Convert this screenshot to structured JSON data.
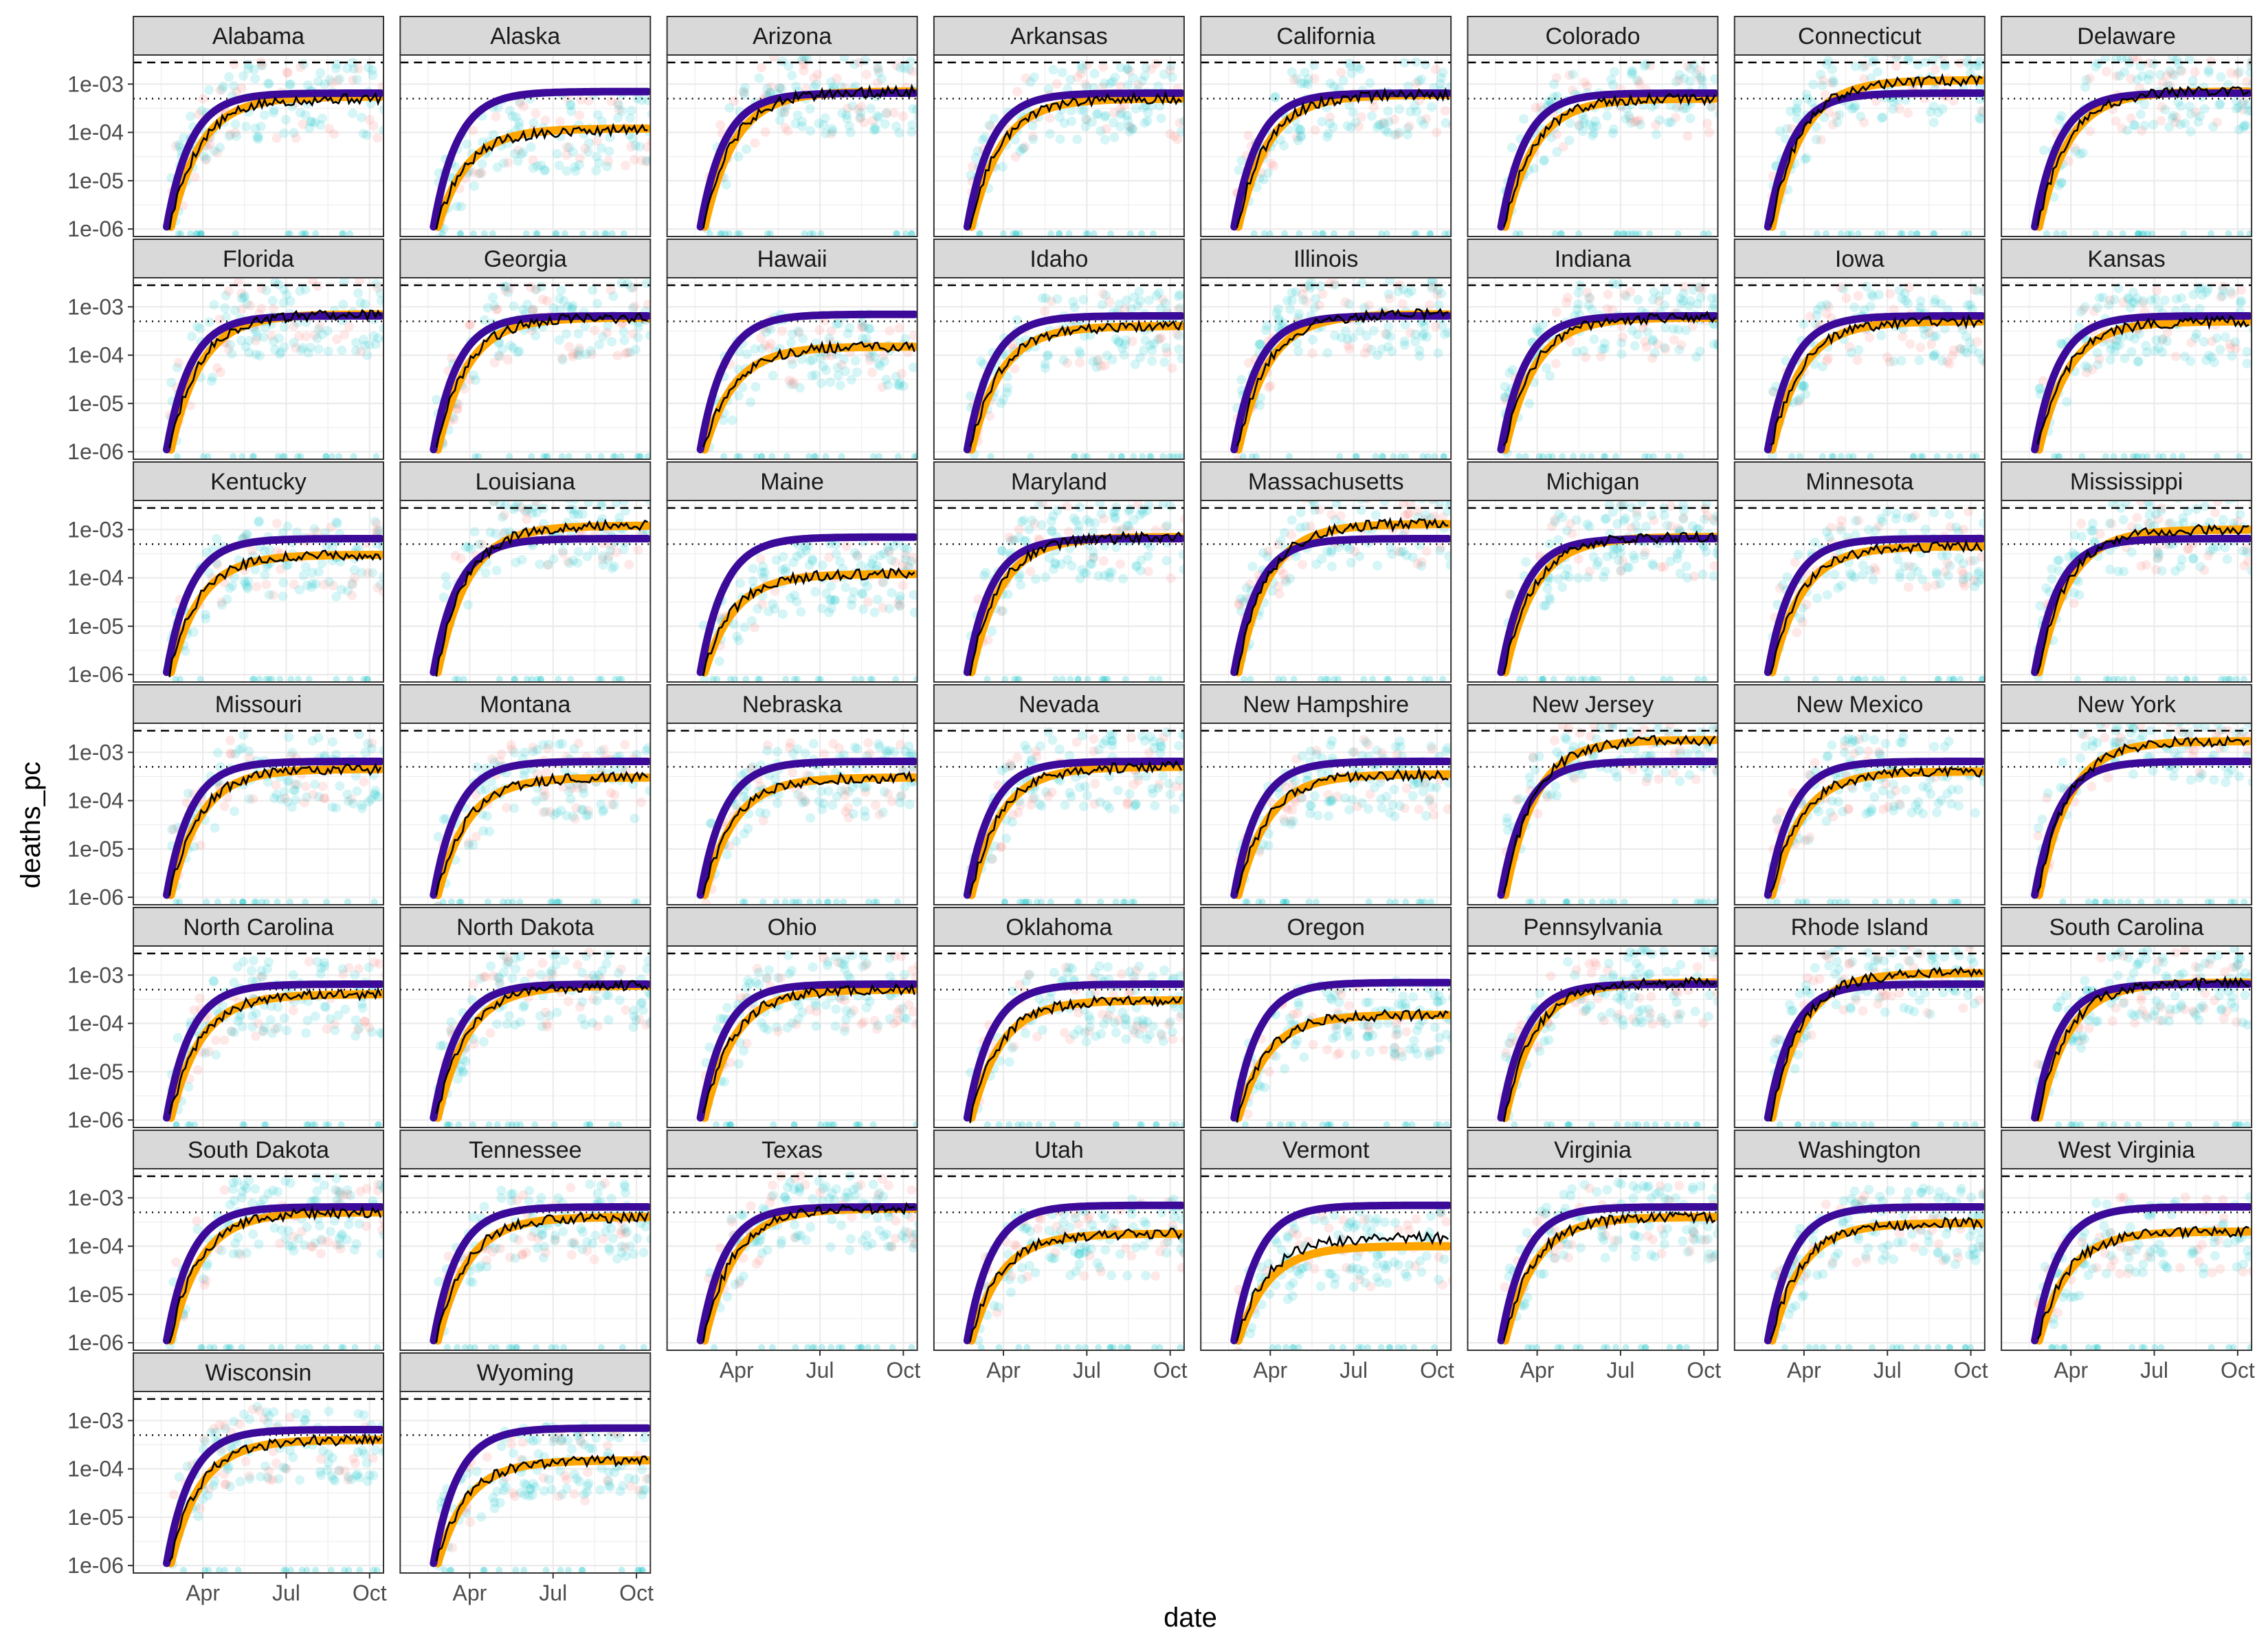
{
  "chart_data": {
    "type": "line",
    "xlabel": "date",
    "ylabel": "deaths_pc",
    "x_ticks": [
      "Apr",
      "Jul",
      "Oct"
    ],
    "y_ticks": [
      "1e-03",
      "1e-04",
      "1e-05",
      "1e-06"
    ],
    "y_scale": "log10",
    "ylim": [
      7e-07,
      0.004
    ],
    "grid": true,
    "legend": "none",
    "reference_lines": [
      {
        "style": "dashed",
        "y": 0.0028
      },
      {
        "style": "dotted",
        "y": 0.0005
      }
    ],
    "series_styles": {
      "observed": {
        "color": "#000000"
      },
      "fit_orange": {
        "color": "#FFA500"
      },
      "fit_purple": {
        "color": "#3B0A99"
      },
      "points_a": {
        "color": "#00BFC4"
      },
      "points_b": {
        "color": "#F8766D"
      }
    },
    "panel_style": {
      "strip_fill": "#D9D9D9",
      "border": "#333333",
      "grid": "#EBEBEB"
    },
    "panels": [
      {
        "name": "Alabama",
        "orange_end": 0.00055,
        "purple_end": 0.00065,
        "black_end": 0.0005
      },
      {
        "name": "Alaska",
        "orange_end": 0.00012,
        "purple_end": 0.0007,
        "black_end": 0.00011
      },
      {
        "name": "Arizona",
        "orange_end": 0.0007,
        "purple_end": 0.00065,
        "black_end": 0.0007
      },
      {
        "name": "Arkansas",
        "orange_end": 0.0005,
        "purple_end": 0.00065,
        "black_end": 0.0005
      },
      {
        "name": "California",
        "orange_end": 0.0006,
        "purple_end": 0.00065,
        "black_end": 0.0006
      },
      {
        "name": "Colorado",
        "orange_end": 0.0005,
        "purple_end": 0.00065,
        "black_end": 0.0005
      },
      {
        "name": "Connecticut",
        "orange_end": 0.0012,
        "purple_end": 0.00065,
        "black_end": 0.0012
      },
      {
        "name": "Delaware",
        "orange_end": 0.0007,
        "purple_end": 0.00065,
        "black_end": 0.0007
      },
      {
        "name": "Florida",
        "orange_end": 0.0007,
        "purple_end": 0.00065,
        "black_end": 0.0007
      },
      {
        "name": "Georgia",
        "orange_end": 0.0006,
        "purple_end": 0.00065,
        "black_end": 0.0006
      },
      {
        "name": "Hawaii",
        "orange_end": 0.00015,
        "purple_end": 0.0007,
        "black_end": 0.00015
      },
      {
        "name": "Idaho",
        "orange_end": 0.0004,
        "purple_end": 0.00065,
        "black_end": 0.0004
      },
      {
        "name": "Illinois",
        "orange_end": 0.0007,
        "purple_end": 0.00065,
        "black_end": 0.0007
      },
      {
        "name": "Indiana",
        "orange_end": 0.0006,
        "purple_end": 0.00065,
        "black_end": 0.0006
      },
      {
        "name": "Iowa",
        "orange_end": 0.0005,
        "purple_end": 0.00065,
        "black_end": 0.0005
      },
      {
        "name": "Kansas",
        "orange_end": 0.0005,
        "purple_end": 0.00065,
        "black_end": 0.0005
      },
      {
        "name": "Kentucky",
        "orange_end": 0.0003,
        "purple_end": 0.00065,
        "black_end": 0.0003
      },
      {
        "name": "Louisiana",
        "orange_end": 0.0012,
        "purple_end": 0.00065,
        "black_end": 0.0012
      },
      {
        "name": "Maine",
        "orange_end": 0.00012,
        "purple_end": 0.0007,
        "black_end": 0.00012
      },
      {
        "name": "Maryland",
        "orange_end": 0.0007,
        "purple_end": 0.00065,
        "black_end": 0.0007
      },
      {
        "name": "Massachusetts",
        "orange_end": 0.0013,
        "purple_end": 0.00065,
        "black_end": 0.0013
      },
      {
        "name": "Michigan",
        "orange_end": 0.0007,
        "purple_end": 0.00065,
        "black_end": 0.0007
      },
      {
        "name": "Minnesota",
        "orange_end": 0.00045,
        "purple_end": 0.00065,
        "black_end": 0.00045
      },
      {
        "name": "Mississippi",
        "orange_end": 0.001,
        "purple_end": 0.00065,
        "black_end": 0.001
      },
      {
        "name": "Missouri",
        "orange_end": 0.00045,
        "purple_end": 0.00065,
        "black_end": 0.00045
      },
      {
        "name": "Montana",
        "orange_end": 0.0003,
        "purple_end": 0.00065,
        "black_end": 0.0003
      },
      {
        "name": "Nebraska",
        "orange_end": 0.0003,
        "purple_end": 0.00065,
        "black_end": 0.0003
      },
      {
        "name": "Nevada",
        "orange_end": 0.0005,
        "purple_end": 0.00065,
        "black_end": 0.0005
      },
      {
        "name": "New Hampshire",
        "orange_end": 0.00035,
        "purple_end": 0.00065,
        "black_end": 0.00035
      },
      {
        "name": "New Jersey",
        "orange_end": 0.0018,
        "purple_end": 0.00065,
        "black_end": 0.0018
      },
      {
        "name": "New Mexico",
        "orange_end": 0.0004,
        "purple_end": 0.00065,
        "black_end": 0.0004
      },
      {
        "name": "New York",
        "orange_end": 0.0017,
        "purple_end": 0.00065,
        "black_end": 0.0017
      },
      {
        "name": "North Carolina",
        "orange_end": 0.0004,
        "purple_end": 0.00065,
        "black_end": 0.0004
      },
      {
        "name": "North Dakota",
        "orange_end": 0.0006,
        "purple_end": 0.00065,
        "black_end": 0.0006
      },
      {
        "name": "Ohio",
        "orange_end": 0.0005,
        "purple_end": 0.00065,
        "black_end": 0.0005
      },
      {
        "name": "Oklahoma",
        "orange_end": 0.0003,
        "purple_end": 0.00065,
        "black_end": 0.0003
      },
      {
        "name": "Oregon",
        "orange_end": 0.00015,
        "purple_end": 0.0007,
        "black_end": 0.00015
      },
      {
        "name": "Pennsylvania",
        "orange_end": 0.0007,
        "purple_end": 0.00065,
        "black_end": 0.0007
      },
      {
        "name": "Rhode Island",
        "orange_end": 0.0011,
        "purple_end": 0.00065,
        "black_end": 0.0011
      },
      {
        "name": "South Carolina",
        "orange_end": 0.0007,
        "purple_end": 0.00065,
        "black_end": 0.0007
      },
      {
        "name": "South Dakota",
        "orange_end": 0.0005,
        "purple_end": 0.00065,
        "black_end": 0.0005
      },
      {
        "name": "Tennessee",
        "orange_end": 0.0004,
        "purple_end": 0.00065,
        "black_end": 0.0004
      },
      {
        "name": "Texas",
        "orange_end": 0.0006,
        "purple_end": 0.00065,
        "black_end": 0.0006
      },
      {
        "name": "Utah",
        "orange_end": 0.00018,
        "purple_end": 0.0007,
        "black_end": 0.00018
      },
      {
        "name": "Vermont",
        "orange_end": 0.0001,
        "purple_end": 0.0007,
        "black_end": 0.00015
      },
      {
        "name": "Virginia",
        "orange_end": 0.0004,
        "purple_end": 0.00065,
        "black_end": 0.0004
      },
      {
        "name": "Washington",
        "orange_end": 0.0003,
        "purple_end": 0.00065,
        "black_end": 0.0003
      },
      {
        "name": "West Virginia",
        "orange_end": 0.0002,
        "purple_end": 0.00065,
        "black_end": 0.0002
      },
      {
        "name": "Wisconsin",
        "orange_end": 0.0004,
        "purple_end": 0.00065,
        "black_end": 0.0004
      },
      {
        "name": "Wyoming",
        "orange_end": 0.00015,
        "purple_end": 0.0007,
        "black_end": 0.00015
      }
    ]
  }
}
